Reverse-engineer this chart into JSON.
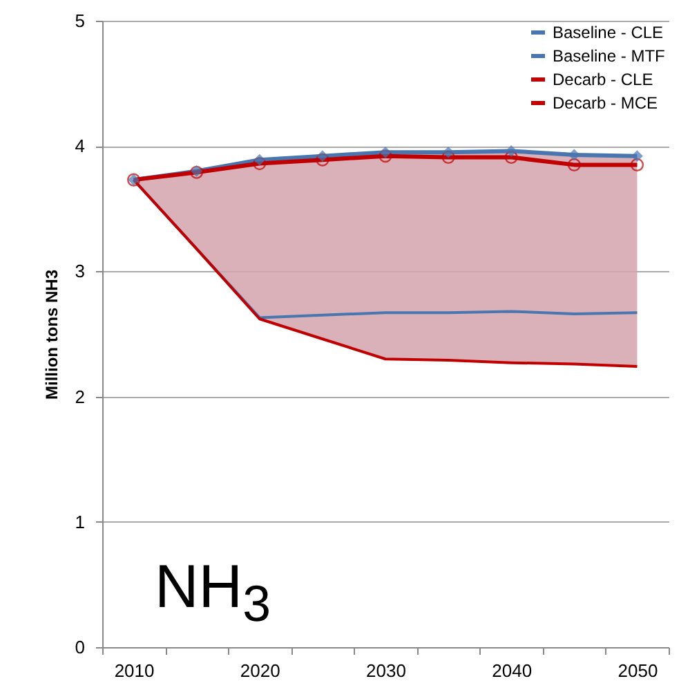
{
  "chart_data": {
    "type": "line",
    "categories": [
      "2010",
      null,
      "2020",
      null,
      "2030",
      null,
      "2040",
      null,
      "2050"
    ],
    "ylabel": "Million tons NH3",
    "ylim": [
      0,
      5
    ],
    "yticks": [
      0,
      1,
      2,
      3,
      4,
      5
    ],
    "grid": "y",
    "legend": "top right",
    "annotations": [
      "NH$_{3}$"
    ],
    "series": [
      {
        "name": "Baseline - CLE",
        "color": "#4a76b0",
        "marker": "diamond",
        "values": [
          3.73,
          3.8,
          3.89,
          3.92,
          3.95,
          3.95,
          3.96,
          3.93,
          3.92
        ],
        "lower": [
          3.73,
          3.18,
          2.62,
          2.46,
          2.3,
          2.29,
          2.27,
          2.26,
          2.24
        ],
        "upper": [
          3.73,
          3.8,
          3.89,
          3.92,
          3.95,
          3.95,
          3.96,
          3.93,
          3.92
        ]
      },
      {
        "name": "Baseline - MTF",
        "color": "#4a76b0",
        "values": [
          3.73,
          3.18,
          2.63,
          2.65,
          2.67,
          2.67,
          2.68,
          2.66,
          2.67
        ]
      },
      {
        "name": "Decarb - CLE",
        "color": "#c00000",
        "marker": "circle",
        "values": [
          3.73,
          3.79,
          3.86,
          3.89,
          3.92,
          3.91,
          3.91,
          3.85,
          3.85
        ]
      },
      {
        "name": "Decarb - MCE",
        "color": "#c00000",
        "values": [
          3.73,
          3.18,
          2.62,
          2.46,
          2.3,
          2.29,
          2.27,
          2.26,
          2.24
        ]
      }
    ]
  }
}
